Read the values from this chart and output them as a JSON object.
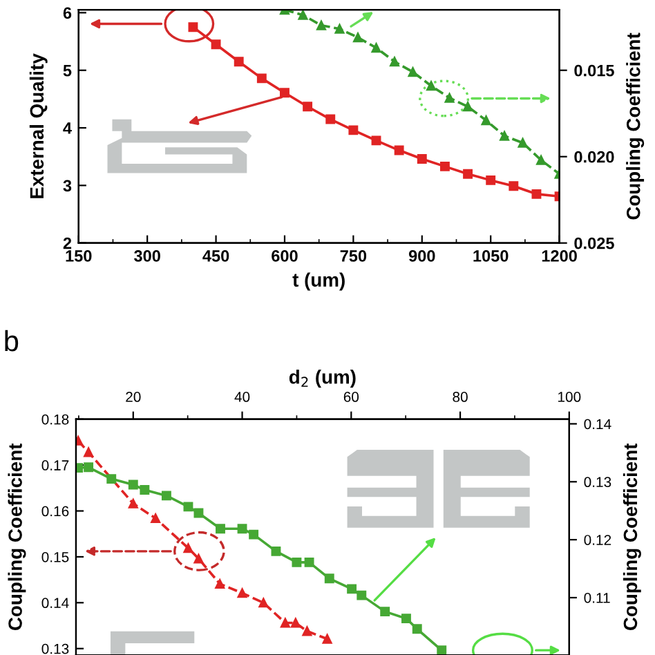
{
  "chart_data": [
    {
      "type": "line",
      "xlabel": "t (um)",
      "ylabel": "External Quality",
      "y2label": "Coupling Coefficient",
      "xlim": [
        150,
        1200
      ],
      "xticks": [
        150,
        300,
        450,
        600,
        750,
        900,
        1050,
        1200
      ],
      "ylim": [
        2,
        6.05
      ],
      "yticks": [
        2,
        3,
        4,
        5,
        6
      ],
      "y2lim": [
        0.025,
        0.0115
      ],
      "y2ticks": [
        0.015,
        {
          "value": 0.02,
          "label": "0.020"
        },
        0.025
      ],
      "legend": false,
      "grid": false,
      "series": [
        {
          "color": "#e02424",
          "marker": "square",
          "line_style": "solid",
          "x": [
            400,
            450,
            500,
            550,
            600,
            650,
            700,
            750,
            800,
            850,
            900,
            950,
            1000,
            1050,
            1100,
            1150,
            1200
          ],
          "values": [
            5.75,
            5.45,
            5.15,
            4.86,
            4.61,
            4.37,
            4.15,
            3.96,
            3.78,
            3.61,
            3.46,
            3.33,
            3.2,
            3.09,
            2.99,
            2.85,
            2.81
          ]
        },
        {
          "color": "#359a2c",
          "marker": "triangle",
          "line_style": "dashed",
          "axis": "y2",
          "x": [
            600,
            640,
            680,
            720,
            760,
            800,
            840,
            880,
            920,
            960,
            1000,
            1040,
            1080,
            1120,
            1160,
            1200
          ],
          "values": [
            0.0115,
            0.0118,
            0.0124,
            0.0126,
            0.0131,
            0.0137,
            0.0145,
            0.0151,
            0.0159,
            0.0166,
            0.0171,
            0.0179,
            0.0188,
            0.0192,
            0.0202,
            0.021
          ]
        }
      ]
    },
    {
      "type": "line",
      "xlabel": "d$_{2}$ (um)",
      "ylabel": "Coupling Coefficient",
      "y2label": "Coupling Coefficient",
      "annotations": [
        "b"
      ],
      "xlim": [
        9.5,
        100
      ],
      "xticks": [
        20,
        40,
        60,
        80,
        100
      ],
      "ylim": [
        0.1286,
        0.18
      ],
      "yticks": [
        0.13,
        0.14,
        0.15,
        0.16,
        0.17,
        0.18
      ],
      "y2lim": [
        0.1001,
        0.1408
      ],
      "y2ticks": [
        0.11,
        0.12,
        0.13,
        0.14
      ],
      "legend": false,
      "grid": false,
      "series": [
        {
          "color": "#e02424",
          "marker": "triangle",
          "line_style": "dashed",
          "x": [
            9.9,
            11.8,
            20,
            24.1,
            30.1,
            32,
            35.9,
            40,
            43.9,
            47.9,
            49.8,
            51.9,
            55.6
          ],
          "values": [
            0.1753,
            0.1728,
            0.1616,
            0.1584,
            0.1519,
            0.1496,
            0.1441,
            0.1421,
            0.14,
            0.1356,
            0.1356,
            0.1338,
            0.1321
          ]
        },
        {
          "color": "#46a834",
          "marker": "square",
          "line_style": "solid",
          "axis": "y2",
          "x": [
            9.9,
            11.8,
            16,
            20,
            22.1,
            26.1,
            30.1,
            32,
            36,
            40,
            42.1,
            46.2,
            50,
            52.3,
            56,
            60.1,
            61.9,
            66.2,
            70.1,
            72.1,
            76.6
          ],
          "values": [
            0.1324,
            0.1325,
            0.1305,
            0.1295,
            0.1286,
            0.1276,
            0.1257,
            0.1246,
            0.1219,
            0.1219,
            0.1209,
            0.118,
            0.1161,
            0.1161,
            0.1133,
            0.1115,
            0.1104,
            0.1076,
            0.1064,
            0.1046,
            0.1009
          ]
        }
      ]
    }
  ]
}
